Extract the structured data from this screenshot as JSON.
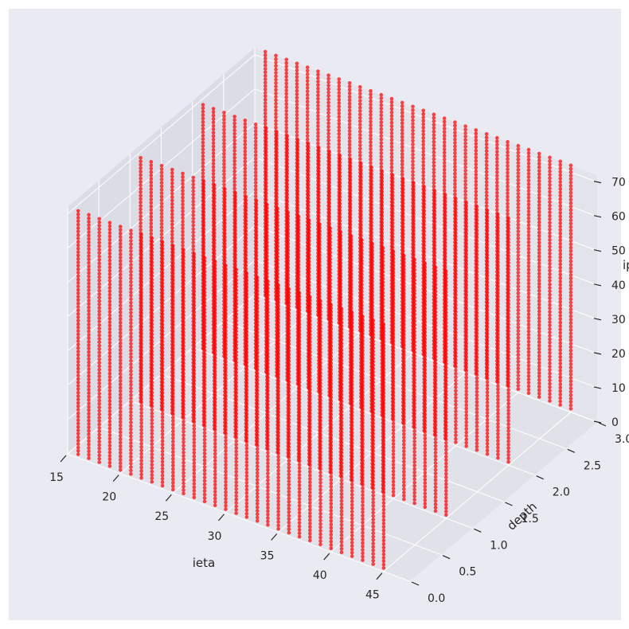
{
  "chart_data": {
    "type": "scatter",
    "projection": "3d",
    "style": "seaborn-darkgrid",
    "title": "",
    "marker_color": "#ff0000",
    "pane_color": "#e8e8f1",
    "grid_color": "#ffffff",
    "xlabel": "ieta",
    "ylabel": "depth",
    "zlabel": "iphi",
    "xlim": [
      15,
      47.5
    ],
    "ylim": [
      0,
      3
    ],
    "zlim": [
      0,
      72
    ],
    "x_ticks": [
      "15",
      "20",
      "25",
      "30",
      "35",
      "40",
      "45"
    ],
    "y_ticks": [
      "0.0",
      "0.5",
      "1.0",
      "1.5",
      "2.0",
      "2.5",
      "3.0"
    ],
    "z_ticks": [
      "0",
      "10",
      "20",
      "30",
      "40",
      "50",
      "60",
      "70"
    ],
    "grid": true,
    "series": [
      {
        "depth": 0,
        "ieta_range": [
          16,
          45
        ],
        "iphi_range": [
          1,
          72
        ]
      },
      {
        "depth": 1,
        "ieta_range": [
          16,
          45
        ],
        "iphi_range": [
          1,
          72
        ]
      },
      {
        "depth": 2,
        "ieta_range": [
          16,
          45
        ],
        "iphi_range": [
          1,
          72
        ]
      },
      {
        "depth": 3,
        "ieta_range": [
          16,
          45
        ],
        "iphi_range": [
          1,
          72
        ]
      }
    ]
  }
}
